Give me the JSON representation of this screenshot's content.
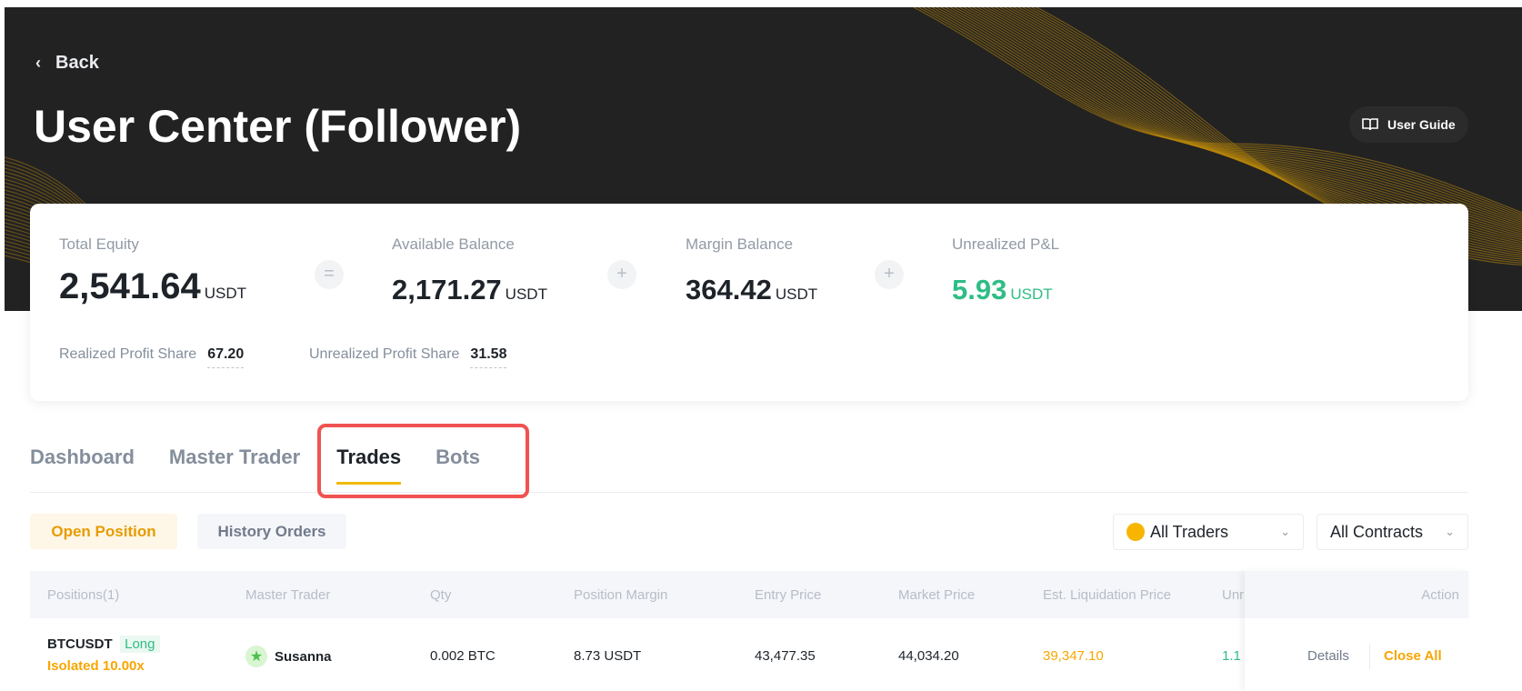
{
  "header": {
    "back_label": "Back",
    "title": "User Center (Follower)",
    "user_guide_label": "User Guide"
  },
  "summary": {
    "total_equity": {
      "label": "Total Equity",
      "value": "2,541.64",
      "unit": "USDT"
    },
    "equals_symbol": "=",
    "available_balance": {
      "label": "Available Balance",
      "value": "2,171.27",
      "unit": "USDT"
    },
    "plus_symbol": "+",
    "margin_balance": {
      "label": "Margin Balance",
      "value": "364.42",
      "unit": "USDT"
    },
    "unrealized_pnl": {
      "label": "Unrealized P&L",
      "value": "5.93",
      "unit": "USDT"
    },
    "realized_profit_share": {
      "label": "Realized Profit Share",
      "value": "67.20"
    },
    "unrealized_profit_share": {
      "label": "Unrealized Profit Share",
      "value": "31.58"
    }
  },
  "tabs": [
    {
      "label": "Dashboard"
    },
    {
      "label": "Master Trader"
    },
    {
      "label": "Trades",
      "active": true
    },
    {
      "label": "Bots"
    }
  ],
  "subtabs": {
    "open_position": "Open Position",
    "history_orders": "History Orders"
  },
  "filters": {
    "traders": "All Traders",
    "contracts": "All Contracts"
  },
  "table": {
    "columns": [
      "Positions(1)",
      "Master Trader",
      "Qty",
      "Position Margin",
      "Entry Price",
      "Market Price",
      "Est. Liquidation Price",
      "Unr",
      "Action"
    ],
    "rows": [
      {
        "symbol": "BTCUSDT",
        "side": "Long",
        "margin_mode": "Isolated 10.00x",
        "master_trader": "Susanna",
        "qty": "0.002 BTC",
        "position_margin": "8.73 USDT",
        "entry_price": "43,477.35",
        "market_price": "44,034.20",
        "liq_price": "39,347.10",
        "unrealized": "1.1",
        "details": "Details",
        "close_all": "Close All"
      }
    ]
  },
  "colors": {
    "accent": "#f0b90b",
    "positive": "#2ebd85",
    "warning": "#f7a600",
    "highlight": "#f05252",
    "hero_bg": "#222223"
  }
}
